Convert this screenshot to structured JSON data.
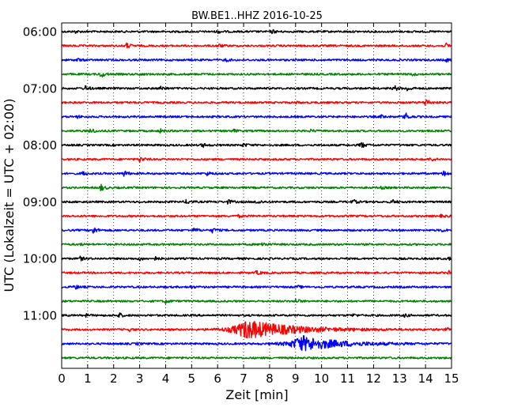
{
  "chart_data": {
    "type": "line",
    "title": "BW.BE1..HHZ 2016-10-25",
    "xlabel": "Zeit  [min]",
    "ylabel": "UTC (Lokalzeit = UTC + 02:00)",
    "xlim": [
      0,
      15
    ],
    "x_ticks": [
      0,
      1,
      2,
      3,
      4,
      5,
      6,
      7,
      8,
      9,
      10,
      11,
      12,
      13,
      14,
      15
    ],
    "y_tick_labels": [
      "06:00",
      "07:00",
      "08:00",
      "09:00",
      "10:00",
      "11:00"
    ],
    "y_tick_rows": [
      0,
      4,
      8,
      12,
      16,
      20
    ],
    "grid": "vertical dotted at each minute",
    "trace_colors": [
      "#000000",
      "#ff0000",
      "#0000ff",
      "#008000"
    ],
    "traces": [
      {
        "start": "06:00",
        "events": [
          {
            "t": 0.5,
            "a": 0.3
          },
          {
            "t": 6.0,
            "a": 0.35
          },
          {
            "t": 8.1,
            "a": 0.4
          }
        ]
      },
      {
        "start": "06:15",
        "events": [
          {
            "t": 2.5,
            "a": 0.6
          },
          {
            "t": 6.0,
            "a": 0.5
          },
          {
            "t": 14.8,
            "a": 0.5
          }
        ]
      },
      {
        "start": "06:30",
        "events": [
          {
            "t": 0.6,
            "a": 0.35
          },
          {
            "t": 6.3,
            "a": 0.35
          },
          {
            "t": 14.8,
            "a": 0.35
          }
        ]
      },
      {
        "start": "06:45",
        "events": [
          {
            "t": 1.5,
            "a": 0.8
          },
          {
            "t": 3.0,
            "a": 0.25
          },
          {
            "t": 13.5,
            "a": 0.3
          }
        ]
      },
      {
        "start": "07:00",
        "events": [
          {
            "t": 0.9,
            "a": 0.6
          },
          {
            "t": 3.8,
            "a": 0.4
          },
          {
            "t": 12.8,
            "a": 0.6
          },
          {
            "t": 13.3,
            "a": 0.55
          }
        ]
      },
      {
        "start": "07:15",
        "events": [
          {
            "t": 14.0,
            "a": 1.0
          },
          {
            "t": 9.0,
            "a": 0.2
          }
        ]
      },
      {
        "start": "07:30",
        "events": [
          {
            "t": 13.2,
            "a": 1.1
          },
          {
            "t": 12.3,
            "a": 0.35
          },
          {
            "t": 0.6,
            "a": 0.25
          }
        ]
      },
      {
        "start": "07:45",
        "events": [
          {
            "t": 1.1,
            "a": 0.7
          },
          {
            "t": 3.8,
            "a": 0.4
          },
          {
            "t": 6.6,
            "a": 0.35
          },
          {
            "t": 9.6,
            "a": 0.3
          }
        ]
      },
      {
        "start": "08:00",
        "events": [
          {
            "t": 5.4,
            "a": 0.5
          },
          {
            "t": 7.0,
            "a": 0.4
          },
          {
            "t": 11.5,
            "a": 0.8
          }
        ]
      },
      {
        "start": "08:15",
        "events": [
          {
            "t": 3.0,
            "a": 0.7
          },
          {
            "t": 14.2,
            "a": 0.5
          }
        ]
      },
      {
        "start": "08:30",
        "events": [
          {
            "t": 0.8,
            "a": 0.5
          },
          {
            "t": 2.4,
            "a": 0.7
          },
          {
            "t": 5.6,
            "a": 0.4
          },
          {
            "t": 14.7,
            "a": 0.8
          }
        ]
      },
      {
        "start": "08:45",
        "events": [
          {
            "t": 1.5,
            "a": 0.8
          },
          {
            "t": 12.3,
            "a": 0.25
          }
        ]
      },
      {
        "start": "09:00",
        "events": [
          {
            "t": 4.8,
            "a": 0.5
          },
          {
            "t": 6.4,
            "a": 0.5
          },
          {
            "t": 7.5,
            "a": 0.6
          },
          {
            "t": 11.2,
            "a": 0.55
          },
          {
            "t": 12.7,
            "a": 0.5
          }
        ]
      },
      {
        "start": "09:15",
        "events": [
          {
            "t": 6.8,
            "a": 0.25
          },
          {
            "t": 14.6,
            "a": 0.25
          }
        ]
      },
      {
        "start": "09:30",
        "events": [
          {
            "t": 1.2,
            "a": 0.9
          },
          {
            "t": 5.1,
            "a": 0.5
          },
          {
            "t": 5.8,
            "a": 0.5
          },
          {
            "t": 14.6,
            "a": 0.4
          }
        ]
      },
      {
        "start": "09:45",
        "events": [
          {
            "t": 7.7,
            "a": 0.6
          },
          {
            "t": 0.7,
            "a": 0.2
          }
        ]
      },
      {
        "start": "10:00",
        "events": [
          {
            "t": 0.7,
            "a": 0.45
          },
          {
            "t": 3.0,
            "a": 0.4
          },
          {
            "t": 3.6,
            "a": 0.35
          },
          {
            "t": 14.9,
            "a": 0.35
          }
        ]
      },
      {
        "start": "10:15",
        "events": [
          {
            "t": 7.5,
            "a": 0.5
          },
          {
            "t": 14.9,
            "a": 0.45
          }
        ]
      },
      {
        "start": "10:30",
        "events": [
          {
            "t": 0.5,
            "a": 0.55
          },
          {
            "t": 4.9,
            "a": 0.35
          },
          {
            "t": 9.1,
            "a": 0.25
          }
        ]
      },
      {
        "start": "10:45",
        "events": [
          {
            "t": 4.0,
            "a": 0.45
          },
          {
            "t": 9.0,
            "a": 0.5
          }
        ]
      },
      {
        "start": "11:00",
        "events": [
          {
            "t": 2.2,
            "a": 0.6
          },
          {
            "t": 0.9,
            "a": 0.35
          },
          {
            "t": 11.2,
            "a": 0.3
          },
          {
            "t": 13.2,
            "a": 0.35
          }
        ]
      },
      {
        "start": "11:15",
        "events": [
          {
            "t": 7.1,
            "a": 2.2,
            "w": 1.6
          },
          {
            "t": 2.6,
            "a": 0.3
          },
          {
            "t": 14.8,
            "a": 0.25
          }
        ]
      },
      {
        "start": "11:30",
        "events": [
          {
            "t": 9.2,
            "a": 1.8,
            "w": 1.3
          },
          {
            "t": 2.9,
            "a": 0.25
          }
        ]
      },
      {
        "start": "11:45",
        "events": []
      }
    ]
  }
}
